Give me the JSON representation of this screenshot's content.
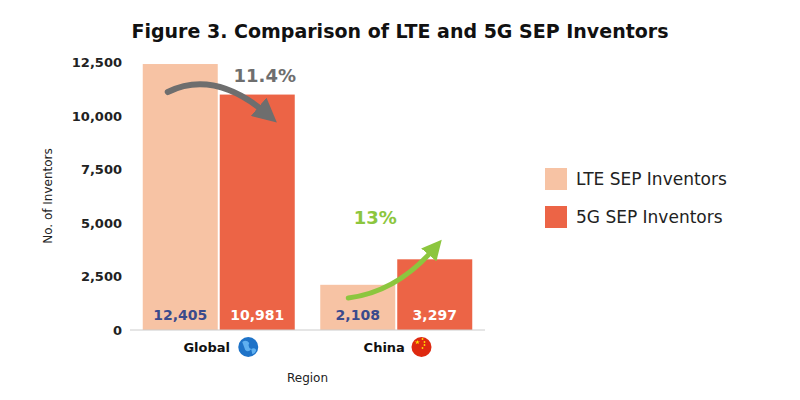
{
  "chart_data": {
    "type": "bar",
    "title": "Figure 3. Comparison of LTE and 5G SEP Inventors",
    "x_label": "Region",
    "y_label": "No. of Inventors",
    "categories": [
      "Global",
      "China"
    ],
    "series": [
      {
        "name": "LTE SEP Inventors",
        "color": "#f7c3a4",
        "values": [
          12405,
          2108
        ],
        "value_labels": [
          "12,405",
          "2,108"
        ]
      },
      {
        "name": "5G SEP Inventors",
        "color": "#ec6446",
        "values": [
          10981,
          3297
        ],
        "value_labels": [
          "10,981",
          "3,297"
        ]
      }
    ],
    "ylim": [
      0,
      12500
    ],
    "yticks": [
      0,
      {
        "value": 2500,
        "label": "2,500"
      },
      {
        "value": 5000,
        "label": "5,000"
      },
      {
        "value": 7500,
        "label": "7,500"
      },
      {
        "value": 10000,
        "label": "10,000"
      },
      {
        "value": 12500,
        "label": "12,500"
      }
    ],
    "grid": false,
    "legend": "right",
    "data_labels": true,
    "annotations": [
      "11.4%",
      "13%"
    ]
  }
}
